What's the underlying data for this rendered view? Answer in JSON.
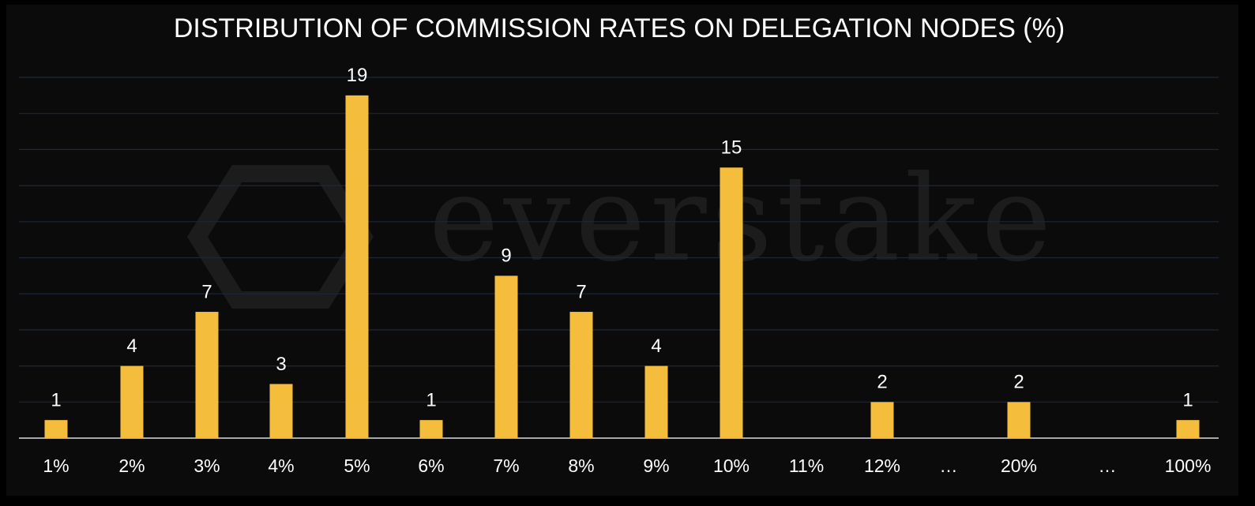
{
  "chart_data": {
    "type": "bar",
    "title": "DISTRIBUTION OF COMMISSION RATES ON DELEGATION NODES (%)",
    "watermark": "everstake",
    "categories": [
      "1%",
      "2%",
      "3%",
      "4%",
      "5%",
      "6%",
      "7%",
      "8%",
      "9%",
      "10%",
      "11%",
      "12%",
      "…",
      "20%",
      "…",
      "100%"
    ],
    "values": [
      1,
      4,
      7,
      3,
      19,
      1,
      9,
      7,
      4,
      15,
      null,
      2,
      null,
      2,
      null,
      1
    ],
    "color": "#f4bd3c",
    "ylim": [
      0,
      20
    ],
    "yticks": [
      0,
      2,
      4,
      6,
      8,
      10,
      12,
      14,
      16,
      18,
      20
    ],
    "grid": true
  }
}
